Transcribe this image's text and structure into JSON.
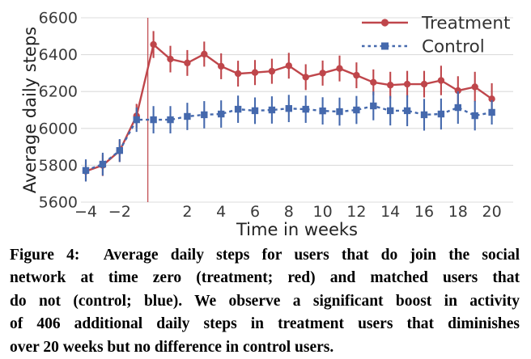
{
  "chart_data": {
    "type": "line",
    "title": "",
    "xlabel": "Time in weeks",
    "ylabel": "Average daily steps",
    "x": [
      -4,
      -3,
      -2,
      -1,
      0,
      1,
      2,
      3,
      4,
      5,
      6,
      7,
      8,
      9,
      10,
      11,
      12,
      13,
      14,
      15,
      16,
      17,
      18,
      19,
      20
    ],
    "xticks": [
      -4,
      -2,
      2,
      4,
      6,
      8,
      10,
      12,
      14,
      16,
      18,
      20
    ],
    "yticks": [
      5600,
      5800,
      6000,
      6200,
      6400,
      6600
    ],
    "ylim": [
      5600,
      6600
    ],
    "xlim": [
      -4.3,
      21.3
    ],
    "grid": "horizontal",
    "legend_position": "top-right",
    "vline": {
      "x": 0,
      "color": "#bf464b",
      "meaning": "time zero (join event)"
    },
    "series": [
      {
        "name": "Treatment",
        "color": "#bf464b",
        "style": "solid",
        "marker": "circle",
        "values": [
          5768,
          5800,
          5878,
          6068,
          6455,
          6376,
          6355,
          6403,
          6337,
          6297,
          6303,
          6310,
          6340,
          6278,
          6300,
          6325,
          6288,
          6250,
          6235,
          6240,
          6240,
          6260,
          6205,
          6225,
          6160
        ],
        "errors": [
          55,
          58,
          60,
          65,
          73,
          72,
          70,
          68,
          70,
          70,
          68,
          68,
          70,
          70,
          68,
          70,
          70,
          70,
          72,
          72,
          72,
          80,
          78,
          82,
          85
        ]
      },
      {
        "name": "Control",
        "color": "#4569ad",
        "style": "dashed",
        "marker": "square",
        "values": [
          5772,
          5806,
          5880,
          6047,
          6047,
          6047,
          6065,
          6074,
          6078,
          6104,
          6096,
          6100,
          6108,
          6104,
          6095,
          6091,
          6100,
          6122,
          6096,
          6096,
          6074,
          6078,
          6113,
          6069,
          6087
        ],
        "errors": [
          60,
          62,
          62,
          66,
          74,
          74,
          74,
          74,
          74,
          74,
          72,
          74,
          74,
          74,
          74,
          76,
          76,
          78,
          80,
          84,
          86,
          84,
          88,
          80,
          66
        ]
      }
    ],
    "colors": {
      "grid": "#dcdcdc",
      "tick_text": "#3a3a3a",
      "legend_text": "#333333"
    }
  },
  "caption": {
    "lines": [
      "Figure 4:  Average daily steps for users that do join the social",
      "network at time zero (treatment; red) and matched users that",
      "do not (control; blue). We observe a significant boost in activity",
      "of 406 additional daily steps in treatment users that diminishes",
      "over 20 weeks but no difference in control users."
    ]
  }
}
